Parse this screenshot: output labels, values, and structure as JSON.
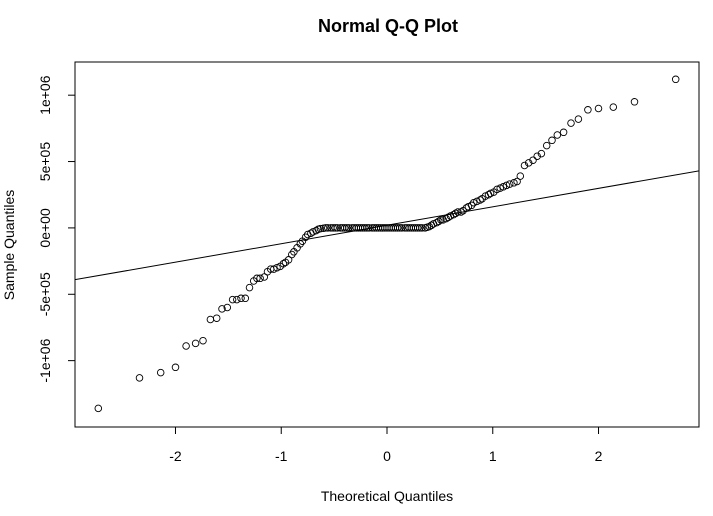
{
  "chart_data": {
    "type": "scatter",
    "title": "Normal Q-Q Plot",
    "xlabel": "Theoretical Quantiles",
    "ylabel": "Sample Quantiles",
    "xlim": [
      -2.95,
      2.95
    ],
    "ylim": [
      -1500000,
      1250000
    ],
    "x_ticks": [
      -2,
      -1,
      0,
      1,
      2
    ],
    "x_tick_labels": [
      "-2",
      "-1",
      "0",
      "1",
      "2"
    ],
    "y_ticks": [
      -1000000,
      -500000,
      0,
      500000,
      1000000
    ],
    "y_tick_labels": [
      "-1e+06",
      "-5e+05",
      "0e+00",
      "5e+05",
      "1e+06"
    ],
    "grid": false,
    "reference_line": {
      "slope": 139000,
      "intercept": 20000
    },
    "points": [
      [
        -2.73,
        -1360000
      ],
      [
        -2.34,
        -1130000
      ],
      [
        -2.14,
        -1090000
      ],
      [
        -2.0,
        -1050000
      ],
      [
        -1.9,
        -890000
      ],
      [
        -1.81,
        -870000
      ],
      [
        -1.74,
        -850000
      ],
      [
        -1.67,
        -690000
      ],
      [
        -1.61,
        -680000
      ],
      [
        -1.56,
        -610000
      ],
      [
        -1.51,
        -600000
      ],
      [
        -1.46,
        -540000
      ],
      [
        -1.42,
        -540000
      ],
      [
        -1.38,
        -530000
      ],
      [
        -1.34,
        -530000
      ],
      [
        -1.3,
        -450000
      ],
      [
        -1.26,
        -400000
      ],
      [
        -1.23,
        -380000
      ],
      [
        -1.2,
        -380000
      ],
      [
        -1.16,
        -370000
      ],
      [
        -1.13,
        -330000
      ],
      [
        -1.1,
        -310000
      ],
      [
        -1.07,
        -310000
      ],
      [
        -1.04,
        -300000
      ],
      [
        -1.01,
        -290000
      ],
      [
        -0.98,
        -270000
      ],
      [
        -0.96,
        -260000
      ],
      [
        -0.93,
        -240000
      ],
      [
        -0.9,
        -200000
      ],
      [
        -0.88,
        -180000
      ],
      [
        -0.85,
        -150000
      ],
      [
        -0.82,
        -120000
      ],
      [
        -0.8,
        -100000
      ],
      [
        -0.77,
        -70000
      ],
      [
        -0.75,
        -50000
      ],
      [
        -0.72,
        -40000
      ],
      [
        -0.7,
        -30000
      ],
      [
        -0.67,
        -20000
      ],
      [
        -0.65,
        -10000
      ],
      [
        -0.63,
        -5000
      ],
      [
        -0.6,
        -2000
      ],
      [
        -0.58,
        0
      ],
      [
        -0.56,
        0
      ],
      [
        -0.53,
        0
      ],
      [
        -0.51,
        0
      ],
      [
        -0.49,
        0
      ],
      [
        -0.47,
        0
      ],
      [
        -0.44,
        0
      ],
      [
        -0.42,
        0
      ],
      [
        -0.4,
        0
      ],
      [
        -0.38,
        0
      ],
      [
        -0.36,
        0
      ],
      [
        -0.33,
        0
      ],
      [
        -0.31,
        0
      ],
      [
        -0.29,
        0
      ],
      [
        -0.27,
        0
      ],
      [
        -0.25,
        0
      ],
      [
        -0.23,
        0
      ],
      [
        -0.21,
        0
      ],
      [
        -0.19,
        0
      ],
      [
        -0.17,
        0
      ],
      [
        -0.14,
        0
      ],
      [
        -0.12,
        0
      ],
      [
        -0.1,
        0
      ],
      [
        -0.08,
        0
      ],
      [
        -0.06,
        0
      ],
      [
        -0.04,
        0
      ],
      [
        -0.02,
        0
      ],
      [
        0.0,
        0
      ],
      [
        0.02,
        0
      ],
      [
        0.04,
        0
      ],
      [
        0.06,
        0
      ],
      [
        0.08,
        0
      ],
      [
        0.1,
        0
      ],
      [
        0.12,
        0
      ],
      [
        0.14,
        0
      ],
      [
        0.17,
        0
      ],
      [
        0.19,
        0
      ],
      [
        0.21,
        0
      ],
      [
        0.23,
        0
      ],
      [
        0.25,
        0
      ],
      [
        0.27,
        0
      ],
      [
        0.29,
        0
      ],
      [
        0.31,
        0
      ],
      [
        0.33,
        0
      ],
      [
        0.36,
        0
      ],
      [
        0.38,
        5000
      ],
      [
        0.4,
        10000
      ],
      [
        0.42,
        20000
      ],
      [
        0.44,
        30000
      ],
      [
        0.47,
        40000
      ],
      [
        0.49,
        50000
      ],
      [
        0.51,
        60000
      ],
      [
        0.53,
        60000
      ],
      [
        0.56,
        70000
      ],
      [
        0.58,
        80000
      ],
      [
        0.6,
        90000
      ],
      [
        0.63,
        100000
      ],
      [
        0.65,
        110000
      ],
      [
        0.67,
        120000
      ],
      [
        0.7,
        120000
      ],
      [
        0.72,
        130000
      ],
      [
        0.75,
        150000
      ],
      [
        0.77,
        160000
      ],
      [
        0.8,
        170000
      ],
      [
        0.82,
        190000
      ],
      [
        0.85,
        200000
      ],
      [
        0.88,
        210000
      ],
      [
        0.9,
        220000
      ],
      [
        0.93,
        240000
      ],
      [
        0.96,
        250000
      ],
      [
        0.98,
        260000
      ],
      [
        1.01,
        270000
      ],
      [
        1.04,
        290000
      ],
      [
        1.07,
        300000
      ],
      [
        1.1,
        310000
      ],
      [
        1.13,
        320000
      ],
      [
        1.16,
        330000
      ],
      [
        1.2,
        340000
      ],
      [
        1.23,
        350000
      ],
      [
        1.26,
        390000
      ],
      [
        1.3,
        470000
      ],
      [
        1.34,
        490000
      ],
      [
        1.38,
        510000
      ],
      [
        1.42,
        540000
      ],
      [
        1.46,
        560000
      ],
      [
        1.51,
        620000
      ],
      [
        1.56,
        660000
      ],
      [
        1.61,
        700000
      ],
      [
        1.67,
        720000
      ],
      [
        1.74,
        790000
      ],
      [
        1.81,
        820000
      ],
      [
        1.9,
        890000
      ],
      [
        2.0,
        900000
      ],
      [
        2.14,
        910000
      ],
      [
        2.34,
        950000
      ],
      [
        2.73,
        1120000
      ]
    ]
  }
}
